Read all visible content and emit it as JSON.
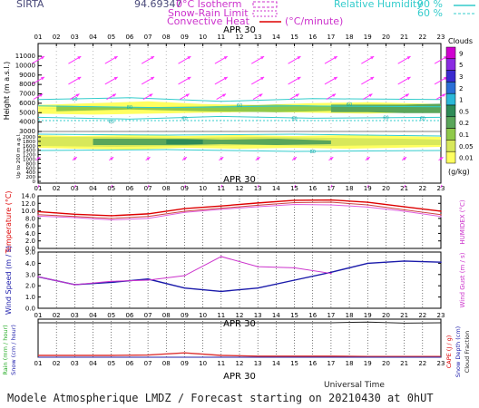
{
  "header": {
    "station": "SIRTA",
    "coord": "94.69347",
    "legend": {
      "isotherm": "0°C Isotherm",
      "snow_rain": "Snow-Rain Limit",
      "convective": "Convective Heat",
      "conv_unit": "(°C/minute)",
      "rh": "Relative Humidity",
      "rh90": "90 %",
      "rh60": "60 %"
    }
  },
  "axis": {
    "hours": [
      "01",
      "02",
      "03",
      "04",
      "05",
      "06",
      "07",
      "08",
      "09",
      "10",
      "11",
      "12",
      "13",
      "14",
      "15",
      "16",
      "17",
      "18",
      "19",
      "20",
      "21",
      "22",
      "23"
    ],
    "date_label": "APR 30",
    "universal_time": "Universal Time"
  },
  "footer": "Modele Atmospherique LMDZ / Forecast starting on 20210430 at 0hUT",
  "chart_data": [
    {
      "type": "heatmap",
      "panel": "clouds-wind-altitude",
      "ylabel": "Height (m a.s.l.)",
      "ylabel2": "Up to 200 m a.g.l.",
      "yticks_upper": [
        "11000",
        "10000",
        "9000",
        "8000",
        "7000",
        "6000",
        "5000",
        "4000",
        "3000"
      ],
      "yticks_lower": [
        "2000",
        "1800",
        "1600",
        "1400",
        "1200",
        "1000",
        "800",
        "600",
        "400",
        "200",
        "0"
      ],
      "colorbar": {
        "title": "Clouds",
        "unit": "(g/kg)",
        "labels": [
          "9",
          "5",
          "3",
          "2",
          "1",
          "0.5",
          "0.2",
          "0.1",
          "0.05",
          "0.01"
        ],
        "colors": [
          "#d000d0",
          "#8a2be2",
          "#3b2ad0",
          "#2a6fd6",
          "#2bb8d8",
          "#2e8b57",
          "#5aa65a",
          "#8fc94a",
          "#d8e85a",
          "#ffff60"
        ]
      },
      "rh_labels": [
        "60",
        "80",
        "60",
        "60",
        "60",
        "60",
        "60",
        "60",
        "80",
        "60"
      ],
      "wind_arrow_color": "#ff33ff"
    },
    {
      "type": "line",
      "panel": "temperature",
      "ylabel": "Temperature (°C)",
      "ylabel2": "HUMIDEX (°C)",
      "yticks": [
        "14.0",
        "12.0",
        "10.0",
        "8.0",
        "6.0",
        "4.0",
        "2.0",
        "0.0"
      ],
      "ylim": [
        0,
        14
      ],
      "x": [
        1,
        3,
        5,
        7,
        9,
        11,
        13,
        15,
        17,
        19,
        21,
        23
      ],
      "series": [
        {
          "values": [
            9.8,
            9.1,
            8.7,
            9.2,
            10.6,
            11.3,
            12.1,
            12.8,
            12.9,
            12.3,
            11.1,
            9.9
          ],
          "color": "#dd0000"
        },
        {
          "values": [
            8.6,
            8.2,
            7.6,
            8.0,
            9.6,
            10.4,
            11.1,
            11.7,
            11.6,
            11.0,
            9.9,
            8.5
          ],
          "color": "#e060e0"
        },
        {
          "values": [
            9.0,
            8.5,
            8.0,
            8.5,
            9.9,
            10.7,
            11.5,
            12.2,
            12.3,
            11.6,
            10.3,
            9.0
          ],
          "color": "#cc4444"
        }
      ]
    },
    {
      "type": "line",
      "panel": "wind",
      "ylabel": "Wind Speed (m / s)",
      "ylabel2": "Wind Gust (m / s)",
      "yticks": [
        "5.0",
        "4.0",
        "3.0",
        "2.0",
        "1.0",
        "0.0"
      ],
      "ylim": [
        0,
        5
      ],
      "x": [
        1,
        3,
        5,
        7,
        9,
        11,
        13,
        15,
        17,
        19,
        21,
        23
      ],
      "series": [
        {
          "values": [
            2.8,
            2.1,
            2.3,
            2.6,
            1.8,
            1.5,
            1.8,
            2.5,
            3.2,
            4.0,
            4.2,
            4.1
          ],
          "color": "#1a1aaa"
        },
        {
          "values": [
            2.8,
            2.1,
            2.4,
            2.5,
            2.9,
            4.6,
            3.7,
            3.6,
            3.1,
            null,
            null,
            null
          ],
          "color": "#cc33cc"
        }
      ]
    },
    {
      "type": "line",
      "panel": "precipitation",
      "ylabel_rain": "Rain (mm / hour)",
      "ylabel_snow": "Snow (cm / hour)",
      "ylabel_cape": "CAPE (J / g)",
      "ylabel_depth": "Snow Depth (cm)",
      "ylabel_frac": "Cloud Fraction",
      "x": [
        1,
        3,
        5,
        7,
        9,
        11,
        13,
        15,
        17,
        19,
        21,
        23
      ],
      "series": [
        {
          "values": [
            0.05,
            0.05,
            0.05,
            0.06,
            0.12,
            0.05,
            0.03,
            0.03,
            0.03,
            0.02,
            0.02,
            0.02
          ],
          "color": "#dd3333"
        },
        {
          "values": [
            0.0,
            0.0,
            0.0,
            0.0,
            0.0,
            0.0,
            0.0,
            0.0,
            0.0,
            0.0,
            0.0,
            0.0
          ],
          "color": "#2222aa"
        },
        {
          "values": [
            0.95,
            0.95,
            0.95,
            0.95,
            0.95,
            0.95,
            0.95,
            0.95,
            0.95,
            0.97,
            0.94,
            0.95
          ],
          "color": "#222222"
        }
      ]
    }
  ]
}
